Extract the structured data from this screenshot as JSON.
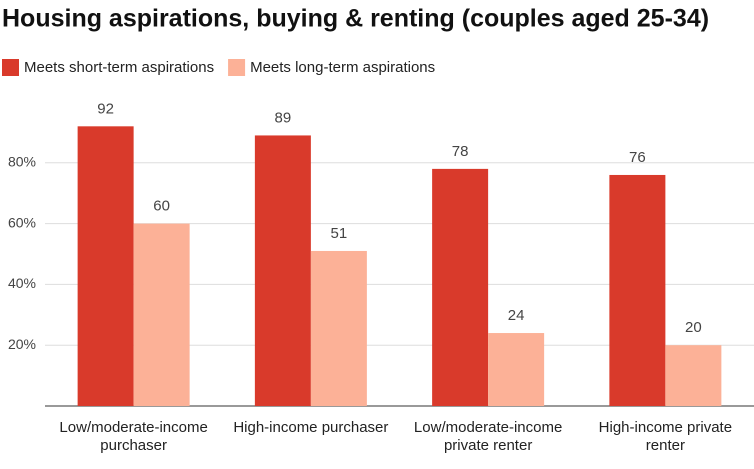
{
  "chart_data": {
    "type": "bar",
    "title": "Housing aspirations, buying & renting (couples aged 25-34)",
    "categories": [
      "Low/moderate-income purchaser",
      "High-income purchaser",
      "Low/moderate-income private renter",
      "High-income private renter"
    ],
    "series": [
      {
        "name": "Meets short-term aspirations",
        "color": "#d93a2b",
        "values": [
          92,
          89,
          78,
          76
        ]
      },
      {
        "name": "Meets long-term aspirations",
        "color": "#fcb197",
        "values": [
          60,
          51,
          24,
          20
        ]
      }
    ],
    "ylim": [
      0,
      100
    ],
    "yticks": [
      {
        "value": 20,
        "label": "20%"
      },
      {
        "value": 40,
        "label": "40%"
      },
      {
        "value": 60,
        "label": "60%"
      },
      {
        "value": 80,
        "label": "80%"
      }
    ],
    "grid": true,
    "legend": "top"
  }
}
